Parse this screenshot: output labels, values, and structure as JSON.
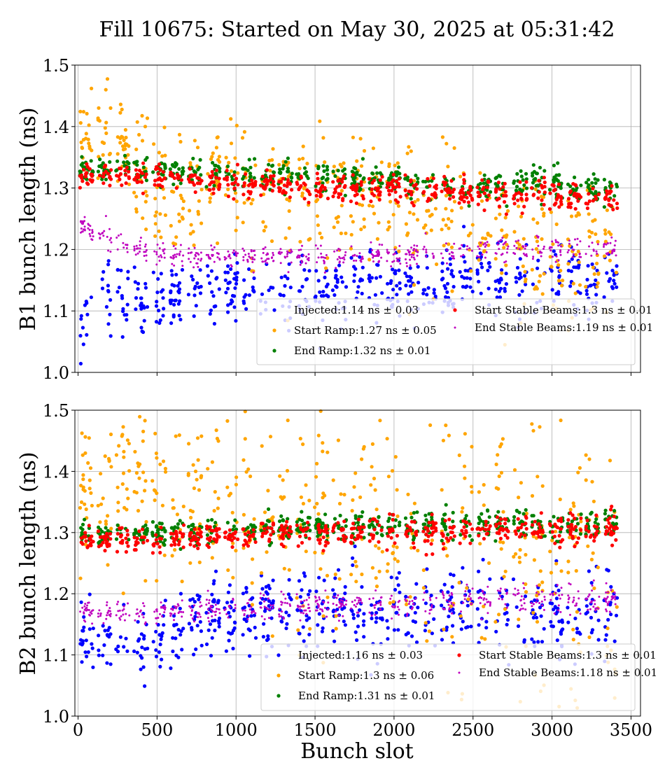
{
  "figure": {
    "title": "Fill 10675: Started on May 30, 2025 at 05:31:42",
    "xlabel": "Bunch slot"
  },
  "chart_data": [
    {
      "type": "scatter",
      "ylabel": "B1 bunch length (ns)",
      "xlim": [
        -20,
        3560
      ],
      "ylim": [
        1.0,
        1.5
      ],
      "xticks": [
        "0",
        "500",
        "1000",
        "1500",
        "2000",
        "2500",
        "3000",
        "3500"
      ],
      "yticks": [
        "1.0",
        "1.1",
        "1.2",
        "1.3",
        "1.4",
        "1.5"
      ],
      "grid": true,
      "legend_position": "lower-right",
      "x_range": [
        0,
        3430
      ],
      "series": [
        {
          "name": "Injected:1.14 ns ± 0.03",
          "color": "#0000ff",
          "mean": 1.14,
          "std": 0.03,
          "slope": 0.0,
          "marker": "dot",
          "samples": [
            [
              0,
              1.06
            ],
            [
              150,
              1.13
            ],
            [
              500,
              1.12
            ],
            [
              1000,
              1.14
            ],
            [
              1500,
              1.13
            ],
            [
              2000,
              1.14
            ],
            [
              2500,
              1.15
            ],
            [
              3000,
              1.14
            ],
            [
              3400,
              1.15
            ]
          ]
        },
        {
          "name": "Start Ramp:1.27 ns ± 0.05",
          "color": "#ffa500",
          "mean": 1.27,
          "std": 0.05,
          "slope": -0.03,
          "marker": "dot",
          "samples": [
            [
              50,
              1.37
            ],
            [
              150,
              1.4
            ],
            [
              500,
              1.3
            ],
            [
              1000,
              1.3
            ],
            [
              1500,
              1.29
            ],
            [
              2000,
              1.28
            ],
            [
              2500,
              1.23
            ],
            [
              3000,
              1.19
            ],
            [
              3400,
              1.2
            ]
          ]
        },
        {
          "name": "End Ramp:1.32 ns ± 0.01",
          "color": "#008000",
          "mean": 1.32,
          "std": 0.01,
          "slope": -0.04,
          "marker": "dot",
          "samples": [
            [
              0,
              1.33
            ],
            [
              500,
              1.33
            ],
            [
              1000,
              1.32
            ],
            [
              1500,
              1.32
            ],
            [
              2000,
              1.31
            ],
            [
              2500,
              1.3
            ],
            [
              3000,
              1.305
            ],
            [
              3400,
              1.3
            ]
          ]
        },
        {
          "name": "Start Stable Beams:1.3 ns ± 0.01",
          "color": "#ff0000",
          "mean": 1.3,
          "std": 0.01,
          "slope": -0.04,
          "marker": "dot",
          "samples": [
            [
              0,
              1.32
            ],
            [
              500,
              1.32
            ],
            [
              1000,
              1.31
            ],
            [
              1500,
              1.3
            ],
            [
              2000,
              1.3
            ],
            [
              2500,
              1.29
            ],
            [
              3000,
              1.29
            ],
            [
              3400,
              1.28
            ]
          ]
        },
        {
          "name": "End Stable Beams:1.19 ns ± 0.01",
          "color": "#bf00bf",
          "mean": 1.19,
          "std": 0.01,
          "slope": 0.0,
          "marker": "small",
          "samples": [
            [
              0,
              1.24
            ],
            [
              500,
              1.19
            ],
            [
              1000,
              1.19
            ],
            [
              1500,
              1.19
            ],
            [
              2000,
              1.19
            ],
            [
              2500,
              1.2
            ],
            [
              3000,
              1.2
            ],
            [
              3400,
              1.2
            ]
          ]
        }
      ]
    },
    {
      "type": "scatter",
      "ylabel": "B2 bunch length (ns)",
      "xlim": [
        -20,
        3560
      ],
      "ylim": [
        1.0,
        1.5
      ],
      "xticks": [
        "0",
        "500",
        "1000",
        "1500",
        "2000",
        "2500",
        "3000",
        "3500"
      ],
      "yticks": [
        "1.0",
        "1.1",
        "1.2",
        "1.3",
        "1.4",
        "1.5"
      ],
      "grid": true,
      "legend_position": "lower-right",
      "x_range": [
        0,
        3430
      ],
      "series": [
        {
          "name": "Injected:1.16 ns ± 0.03",
          "color": "#0000ff",
          "mean": 1.16,
          "std": 0.03,
          "slope": 0.03,
          "marker": "dot",
          "samples": [
            [
              0,
              1.13
            ],
            [
              300,
              1.12
            ],
            [
              500,
              1.13
            ],
            [
              1000,
              1.17
            ],
            [
              1500,
              1.17
            ],
            [
              2000,
              1.17
            ],
            [
              2500,
              1.17
            ],
            [
              3000,
              1.16
            ],
            [
              3400,
              1.17
            ]
          ]
        },
        {
          "name": "Start Ramp:1.3 ns ± 0.06",
          "color": "#ffa500",
          "mean": 1.3,
          "std": 0.06,
          "slope": -0.16,
          "marker": "dot",
          "samples": [
            [
              50,
              1.39
            ],
            [
              300,
              1.37
            ],
            [
              500,
              1.35
            ],
            [
              1000,
              1.34
            ],
            [
              1500,
              1.32
            ],
            [
              2000,
              1.3
            ],
            [
              2500,
              1.27
            ],
            [
              3000,
              1.23
            ],
            [
              3400,
              1.22
            ]
          ]
        },
        {
          "name": "End Ramp:1.31 ns ± 0.01",
          "color": "#008000",
          "mean": 1.31,
          "std": 0.01,
          "slope": 0.03,
          "marker": "dot",
          "samples": [
            [
              0,
              1.295
            ],
            [
              500,
              1.3
            ],
            [
              1000,
              1.305
            ],
            [
              1500,
              1.31
            ],
            [
              2000,
              1.31
            ],
            [
              2500,
              1.315
            ],
            [
              3000,
              1.31
            ],
            [
              3400,
              1.32
            ]
          ]
        },
        {
          "name": "Start Stable Beams:1.3 ns ± 0.01",
          "color": "#ff0000",
          "mean": 1.3,
          "std": 0.01,
          "slope": 0.03,
          "marker": "dot",
          "samples": [
            [
              0,
              1.285
            ],
            [
              500,
              1.29
            ],
            [
              1000,
              1.295
            ],
            [
              1500,
              1.3
            ],
            [
              2000,
              1.3
            ],
            [
              2500,
              1.305
            ],
            [
              3000,
              1.305
            ],
            [
              3400,
              1.31
            ]
          ]
        },
        {
          "name": "End Stable Beams:1.18 ns ± 0.01",
          "color": "#bf00bf",
          "mean": 1.18,
          "std": 0.01,
          "slope": 0.02,
          "marker": "small",
          "samples": [
            [
              0,
              1.17
            ],
            [
              500,
              1.17
            ],
            [
              1000,
              1.175
            ],
            [
              1500,
              1.18
            ],
            [
              2000,
              1.18
            ],
            [
              2500,
              1.19
            ],
            [
              3000,
              1.19
            ],
            [
              3400,
              1.19
            ]
          ]
        }
      ]
    }
  ]
}
